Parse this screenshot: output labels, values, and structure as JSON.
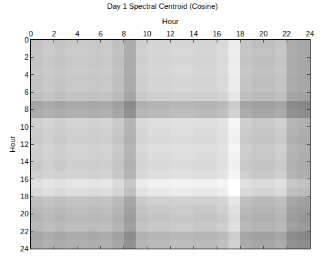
{
  "chart_data": {
    "type": "heatmap",
    "title": "Day 1 Spectral Centroid (Cosine)",
    "x_label": "Hour",
    "y_label": "Hour",
    "x": [
      0.5,
      1.5,
      2.5,
      3.5,
      4.5,
      5.5,
      6.5,
      7.5,
      8.5,
      9.5,
      10.5,
      11.5,
      12.5,
      13.5,
      14.5,
      15.5,
      16.5,
      17.5,
      18.5,
      19.5,
      20.5,
      21.5,
      22.5,
      23.5
    ],
    "y": [
      0.5,
      1.5,
      2.5,
      3.5,
      4.5,
      5.5,
      6.5,
      7.5,
      8.5,
      9.5,
      10.5,
      11.5,
      12.5,
      13.5,
      14.5,
      15.5,
      16.5,
      17.5,
      18.5,
      19.5,
      20.5,
      21.5,
      22.5,
      23.5
    ],
    "xlim": [
      0,
      24
    ],
    "ylim": [
      24,
      0
    ],
    "xticks": [
      0,
      2,
      4,
      6,
      8,
      10,
      12,
      14,
      16,
      18,
      20,
      22,
      24
    ],
    "yticks": [
      0,
      2,
      4,
      6,
      8,
      10,
      12,
      14,
      16,
      18,
      20,
      22,
      24
    ],
    "zlim": [
      0,
      1
    ],
    "grid": false,
    "values": [
      [
        0.77,
        0.79,
        0.77,
        0.79,
        0.79,
        0.78,
        0.79,
        0.75,
        0.67,
        0.81,
        0.83,
        0.83,
        0.84,
        0.84,
        0.83,
        0.83,
        0.85,
        0.92,
        0.77,
        0.75,
        0.75,
        0.77,
        0.67,
        0.65
      ],
      [
        0.78,
        0.8,
        0.78,
        0.8,
        0.8,
        0.79,
        0.8,
        0.76,
        0.68,
        0.82,
        0.84,
        0.84,
        0.85,
        0.85,
        0.84,
        0.84,
        0.86,
        0.93,
        0.78,
        0.76,
        0.76,
        0.78,
        0.68,
        0.66
      ],
      [
        0.77,
        0.79,
        0.77,
        0.79,
        0.79,
        0.78,
        0.79,
        0.75,
        0.67,
        0.81,
        0.83,
        0.83,
        0.84,
        0.84,
        0.83,
        0.83,
        0.85,
        0.92,
        0.77,
        0.75,
        0.75,
        0.77,
        0.67,
        0.65
      ],
      [
        0.78,
        0.8,
        0.78,
        0.8,
        0.8,
        0.79,
        0.8,
        0.76,
        0.68,
        0.82,
        0.84,
        0.84,
        0.85,
        0.85,
        0.84,
        0.84,
        0.86,
        0.93,
        0.78,
        0.76,
        0.76,
        0.78,
        0.68,
        0.66
      ],
      [
        0.77,
        0.79,
        0.77,
        0.79,
        0.79,
        0.78,
        0.79,
        0.75,
        0.67,
        0.81,
        0.83,
        0.83,
        0.84,
        0.84,
        0.83,
        0.83,
        0.85,
        0.92,
        0.77,
        0.75,
        0.75,
        0.77,
        0.67,
        0.65
      ],
      [
        0.77,
        0.79,
        0.77,
        0.79,
        0.79,
        0.78,
        0.79,
        0.75,
        0.67,
        0.81,
        0.83,
        0.83,
        0.84,
        0.84,
        0.83,
        0.83,
        0.85,
        0.92,
        0.77,
        0.75,
        0.75,
        0.77,
        0.67,
        0.65
      ],
      [
        0.75,
        0.77,
        0.75,
        0.77,
        0.77,
        0.76,
        0.77,
        0.73,
        0.65,
        0.79,
        0.81,
        0.81,
        0.82,
        0.82,
        0.81,
        0.81,
        0.83,
        0.9,
        0.75,
        0.73,
        0.73,
        0.75,
        0.65,
        0.63
      ],
      [
        0.65,
        0.67,
        0.65,
        0.67,
        0.67,
        0.66,
        0.67,
        0.63,
        0.55,
        0.69,
        0.71,
        0.71,
        0.72,
        0.72,
        0.71,
        0.71,
        0.73,
        0.8,
        0.65,
        0.63,
        0.63,
        0.65,
        0.55,
        0.53
      ],
      [
        0.67,
        0.69,
        0.67,
        0.69,
        0.69,
        0.68,
        0.69,
        0.65,
        0.57,
        0.71,
        0.73,
        0.73,
        0.74,
        0.74,
        0.73,
        0.73,
        0.75,
        0.82,
        0.67,
        0.65,
        0.65,
        0.67,
        0.57,
        0.55
      ],
      [
        0.81,
        0.83,
        0.81,
        0.83,
        0.83,
        0.82,
        0.83,
        0.79,
        0.71,
        0.85,
        0.87,
        0.87,
        0.88,
        0.88,
        0.87,
        0.87,
        0.89,
        0.96,
        0.81,
        0.79,
        0.79,
        0.81,
        0.71,
        0.69
      ],
      [
        0.8,
        0.82,
        0.8,
        0.82,
        0.82,
        0.81,
        0.82,
        0.78,
        0.7,
        0.84,
        0.86,
        0.86,
        0.87,
        0.87,
        0.86,
        0.86,
        0.88,
        0.95,
        0.8,
        0.78,
        0.78,
        0.8,
        0.7,
        0.68
      ],
      [
        0.79,
        0.81,
        0.79,
        0.81,
        0.81,
        0.8,
        0.81,
        0.77,
        0.69,
        0.83,
        0.85,
        0.85,
        0.86,
        0.86,
        0.85,
        0.85,
        0.87,
        0.94,
        0.79,
        0.77,
        0.77,
        0.79,
        0.69,
        0.67
      ],
      [
        0.81,
        0.83,
        0.81,
        0.83,
        0.83,
        0.82,
        0.83,
        0.79,
        0.71,
        0.85,
        0.87,
        0.87,
        0.88,
        0.88,
        0.87,
        0.87,
        0.89,
        0.96,
        0.81,
        0.79,
        0.79,
        0.81,
        0.71,
        0.69
      ],
      [
        0.8,
        0.82,
        0.8,
        0.82,
        0.82,
        0.81,
        0.82,
        0.78,
        0.7,
        0.84,
        0.86,
        0.86,
        0.87,
        0.87,
        0.86,
        0.86,
        0.88,
        0.95,
        0.8,
        0.78,
        0.78,
        0.8,
        0.7,
        0.68
      ],
      [
        0.79,
        0.81,
        0.79,
        0.81,
        0.81,
        0.8,
        0.81,
        0.77,
        0.69,
        0.83,
        0.85,
        0.85,
        0.86,
        0.86,
        0.85,
        0.85,
        0.87,
        0.94,
        0.79,
        0.77,
        0.77,
        0.79,
        0.69,
        0.67
      ],
      [
        0.81,
        0.83,
        0.81,
        0.83,
        0.83,
        0.82,
        0.83,
        0.79,
        0.71,
        0.85,
        0.87,
        0.87,
        0.88,
        0.88,
        0.87,
        0.87,
        0.89,
        0.96,
        0.81,
        0.79,
        0.79,
        0.81,
        0.71,
        0.69
      ],
      [
        0.88,
        0.9,
        0.88,
        0.9,
        0.9,
        0.89,
        0.9,
        0.86,
        0.78,
        0.92,
        0.94,
        0.94,
        0.95,
        0.95,
        0.94,
        0.94,
        0.96,
        1.0,
        0.88,
        0.86,
        0.86,
        0.88,
        0.78,
        0.76
      ],
      [
        0.85,
        0.87,
        0.85,
        0.87,
        0.87,
        0.86,
        0.87,
        0.83,
        0.75,
        0.89,
        0.91,
        0.91,
        0.92,
        0.92,
        0.91,
        0.91,
        0.93,
        1.0,
        0.85,
        0.83,
        0.83,
        0.85,
        0.75,
        0.73
      ],
      [
        0.75,
        0.77,
        0.75,
        0.77,
        0.77,
        0.76,
        0.77,
        0.73,
        0.65,
        0.79,
        0.81,
        0.81,
        0.82,
        0.82,
        0.81,
        0.81,
        0.83,
        0.9,
        0.75,
        0.73,
        0.73,
        0.75,
        0.65,
        0.63
      ],
      [
        0.73,
        0.75,
        0.73,
        0.75,
        0.75,
        0.74,
        0.75,
        0.71,
        0.63,
        0.77,
        0.79,
        0.79,
        0.8,
        0.8,
        0.79,
        0.79,
        0.81,
        0.88,
        0.73,
        0.71,
        0.71,
        0.73,
        0.63,
        0.61
      ],
      [
        0.71,
        0.73,
        0.71,
        0.73,
        0.73,
        0.72,
        0.73,
        0.69,
        0.61,
        0.75,
        0.77,
        0.77,
        0.78,
        0.78,
        0.77,
        0.77,
        0.79,
        0.86,
        0.71,
        0.69,
        0.69,
        0.71,
        0.61,
        0.59
      ],
      [
        0.73,
        0.75,
        0.73,
        0.75,
        0.75,
        0.74,
        0.75,
        0.71,
        0.63,
        0.77,
        0.79,
        0.79,
        0.8,
        0.8,
        0.79,
        0.79,
        0.81,
        0.88,
        0.73,
        0.71,
        0.71,
        0.73,
        0.63,
        0.61
      ],
      [
        0.65,
        0.67,
        0.65,
        0.67,
        0.67,
        0.66,
        0.67,
        0.63,
        0.55,
        0.69,
        0.71,
        0.71,
        0.72,
        0.72,
        0.71,
        0.71,
        0.73,
        0.8,
        0.65,
        0.63,
        0.63,
        0.65,
        0.55,
        0.53
      ],
      [
        0.67,
        0.69,
        0.67,
        0.69,
        0.69,
        0.68,
        0.69,
        0.65,
        0.57,
        0.71,
        0.73,
        0.73,
        0.74,
        0.74,
        0.73,
        0.73,
        0.75,
        0.82,
        0.67,
        0.65,
        0.65,
        0.67,
        0.57,
        0.55
      ]
    ]
  }
}
